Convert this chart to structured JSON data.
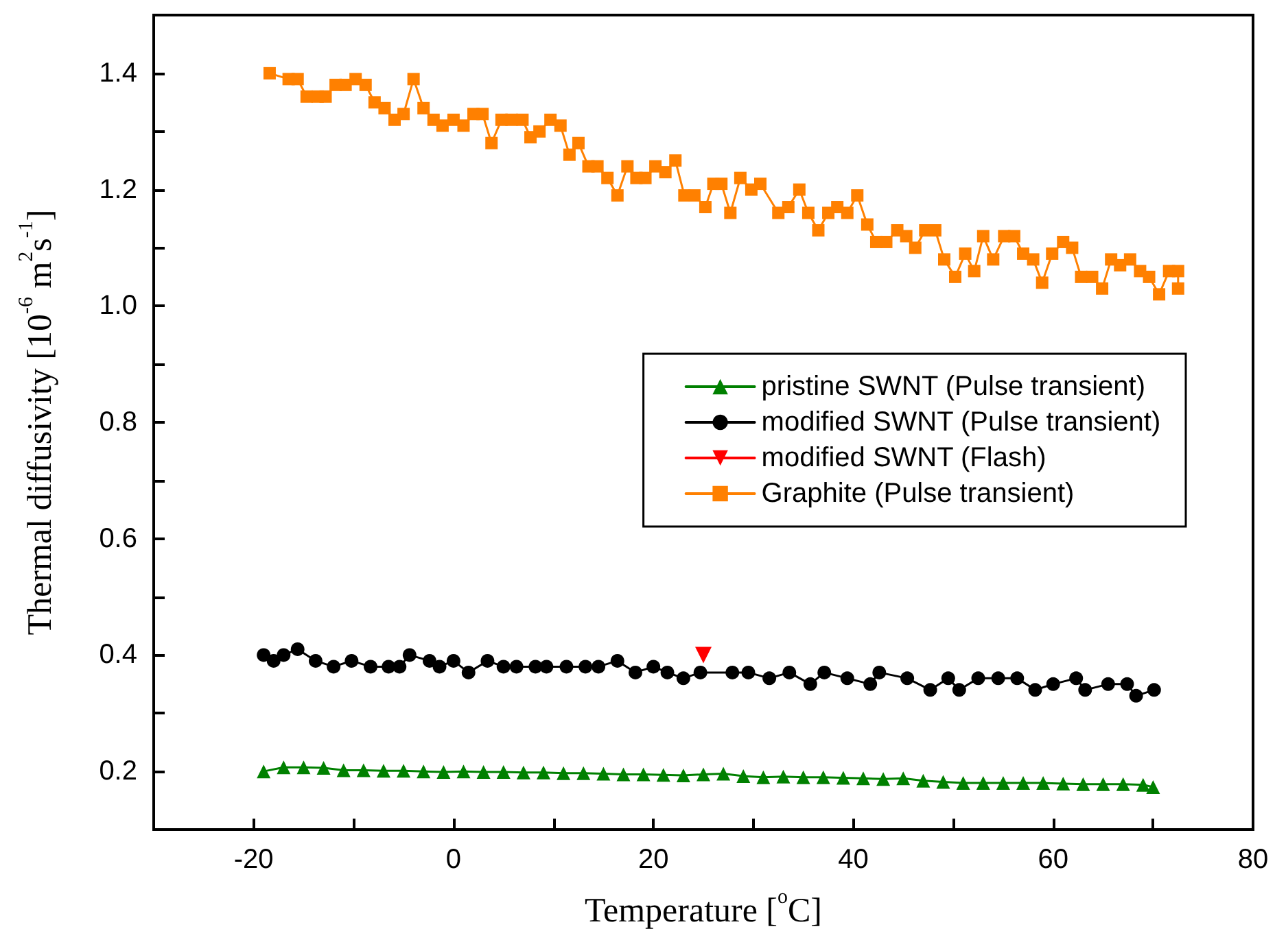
{
  "chart_data": {
    "type": "line",
    "xlabel": "Temperature [$^{o}$C]",
    "ylabel": "Thermal diffusivity [10$^{-6}$ m$^{2}$s$^{-1}$]",
    "xlim": [
      -30,
      80
    ],
    "xticks": [
      -20,
      {
        "value": -10,
        "label": null
      },
      0,
      {
        "value": 10,
        "label": null
      },
      20,
      {
        "value": 30,
        "label": null
      },
      40,
      {
        "value": 50,
        "label": null
      },
      60,
      {
        "value": 70,
        "label": null
      },
      80
    ],
    "ylim": [
      0.1,
      1.5
    ],
    "yticks": [
      0.2,
      {
        "value": 0.3,
        "label": null
      },
      0.4,
      {
        "value": 0.5,
        "label": null
      },
      0.6,
      {
        "value": 0.7,
        "label": null
      },
      0.8,
      {
        "value": 0.9,
        "label": null
      },
      {
        "value": 1.0,
        "label": "1.0"
      },
      {
        "value": 1.1,
        "label": null
      },
      1.2,
      {
        "value": 1.3,
        "label": null
      },
      1.4
    ],
    "grid": false,
    "legend": "right",
    "line_style": "solid",
    "series": [
      {
        "name": "pristine SWNT (Pulse transient)",
        "color": "#008000",
        "marker": "triangle",
        "x": [
          -19,
          -17,
          -15,
          -13,
          -11,
          -9,
          -7,
          -5,
          -3,
          -1,
          1,
          3,
          5,
          7,
          9,
          11,
          13,
          15,
          17,
          19,
          21,
          23,
          25,
          27,
          29,
          31,
          33,
          35,
          37,
          39,
          41,
          43,
          45,
          47,
          49,
          51,
          53,
          55,
          57,
          59,
          61,
          63,
          65,
          67,
          69,
          70
        ],
        "values": [
          0.2,
          0.207,
          0.207,
          0.206,
          0.202,
          0.202,
          0.201,
          0.201,
          0.2,
          0.199,
          0.2,
          0.199,
          0.199,
          0.198,
          0.198,
          0.197,
          0.197,
          0.196,
          0.195,
          0.195,
          0.194,
          0.193,
          0.195,
          0.196,
          0.192,
          0.19,
          0.191,
          0.19,
          0.19,
          0.189,
          0.188,
          0.187,
          0.188,
          0.184,
          0.182,
          0.18,
          0.18,
          0.18,
          0.18,
          0.18,
          0.179,
          0.178,
          0.178,
          0.178,
          0.177,
          0.173
        ]
      },
      {
        "name": "modified SWNT (Pulse transient)",
        "color": "#000000",
        "marker": "circle",
        "x": [
          -19,
          -18,
          -17,
          -15.6,
          -13.8,
          -12,
          -10.2,
          -8.3,
          -6.5,
          -5.4,
          -4.4,
          -2.4,
          -1.4,
          0,
          1.5,
          3.4,
          5,
          6.3,
          8.2,
          9.3,
          11.3,
          13.2,
          14.5,
          16.4,
          18.2,
          20,
          21.4,
          23,
          24.7,
          27.9,
          29.5,
          31.6,
          33.6,
          35.7,
          37.1,
          39.4,
          41.7,
          42.6,
          45.4,
          47.7,
          49.5,
          50.6,
          52.5,
          54.5,
          56.4,
          58.2,
          60,
          62.3,
          63.2,
          65.5,
          67.4,
          68.3,
          70.1
        ],
        "values": [
          0.4,
          0.39,
          0.4,
          0.41,
          0.39,
          0.38,
          0.39,
          0.38,
          0.38,
          0.38,
          0.4,
          0.39,
          0.38,
          0.39,
          0.37,
          0.39,
          0.38,
          0.38,
          0.38,
          0.38,
          0.38,
          0.38,
          0.38,
          0.39,
          0.37,
          0.38,
          0.37,
          0.36,
          0.37,
          0.37,
          0.37,
          0.36,
          0.37,
          0.35,
          0.37,
          0.36,
          0.35,
          0.37,
          0.36,
          0.34,
          0.36,
          0.34,
          0.36,
          0.36,
          0.36,
          0.34,
          0.35,
          0.36,
          0.34,
          0.35,
          0.35,
          0.33,
          0.34
        ]
      },
      {
        "name": "modified SWNT (Flash)",
        "color": "#ff0000",
        "marker": "triangle-down",
        "x": [
          25
        ],
        "values": [
          0.4
        ]
      },
      {
        "name": "Graphite (Pulse transient)",
        "color": "#ff8000",
        "marker": "square",
        "x": [
          -18.4,
          -16.5,
          -15.6,
          -14.7,
          -13.6,
          -12.8,
          -11.8,
          -10.8,
          -9.8,
          -8.8,
          -7.9,
          -6.9,
          -5.9,
          -5.0,
          -4.0,
          -3.0,
          -2.0,
          -1.1,
          0.0,
          1.0,
          2.0,
          2.9,
          3.8,
          4.8,
          5.8,
          6.9,
          7.7,
          8.6,
          9.7,
          10.7,
          11.6,
          12.5,
          13.5,
          14.4,
          15.4,
          16.4,
          17.4,
          18.3,
          19.2,
          20.2,
          21.2,
          22.2,
          23.1,
          24.1,
          25.2,
          26.0,
          26.8,
          27.7,
          28.7,
          29.8,
          30.7,
          32.5,
          33.5,
          34.6,
          35.5,
          36.5,
          37.5,
          38.4,
          39.4,
          40.4,
          41.4,
          42.3,
          43.3,
          44.4,
          45.3,
          46.2,
          47.2,
          48.2,
          49.1,
          50.2,
          51.2,
          52.1,
          53.0,
          54.0,
          55.1,
          56.1,
          57.0,
          58.0,
          58.9,
          59.9,
          61.0,
          61.9,
          62.8,
          63.9,
          64.9,
          65.8,
          66.7,
          67.7,
          68.7,
          69.6,
          70.6,
          71.6,
          72.5,
          72.5
        ],
        "values": [
          1.4,
          1.39,
          1.39,
          1.36,
          1.36,
          1.36,
          1.38,
          1.38,
          1.39,
          1.38,
          1.35,
          1.34,
          1.32,
          1.33,
          1.39,
          1.34,
          1.32,
          1.31,
          1.32,
          1.31,
          1.33,
          1.33,
          1.28,
          1.32,
          1.32,
          1.32,
          1.29,
          1.3,
          1.32,
          1.31,
          1.26,
          1.28,
          1.24,
          1.24,
          1.22,
          1.19,
          1.24,
          1.22,
          1.22,
          1.24,
          1.23,
          1.25,
          1.19,
          1.19,
          1.17,
          1.21,
          1.21,
          1.16,
          1.22,
          1.2,
          1.21,
          1.16,
          1.17,
          1.2,
          1.16,
          1.13,
          1.16,
          1.17,
          1.16,
          1.19,
          1.14,
          1.11,
          1.11,
          1.13,
          1.12,
          1.1,
          1.13,
          1.13,
          1.08,
          1.05,
          1.09,
          1.06,
          1.12,
          1.08,
          1.12,
          1.12,
          1.09,
          1.08,
          1.04,
          1.09,
          1.11,
          1.1,
          1.05,
          1.05,
          1.03,
          1.08,
          1.07,
          1.08,
          1.06,
          1.05,
          1.02,
          1.06,
          1.06,
          1.03
        ]
      }
    ]
  }
}
